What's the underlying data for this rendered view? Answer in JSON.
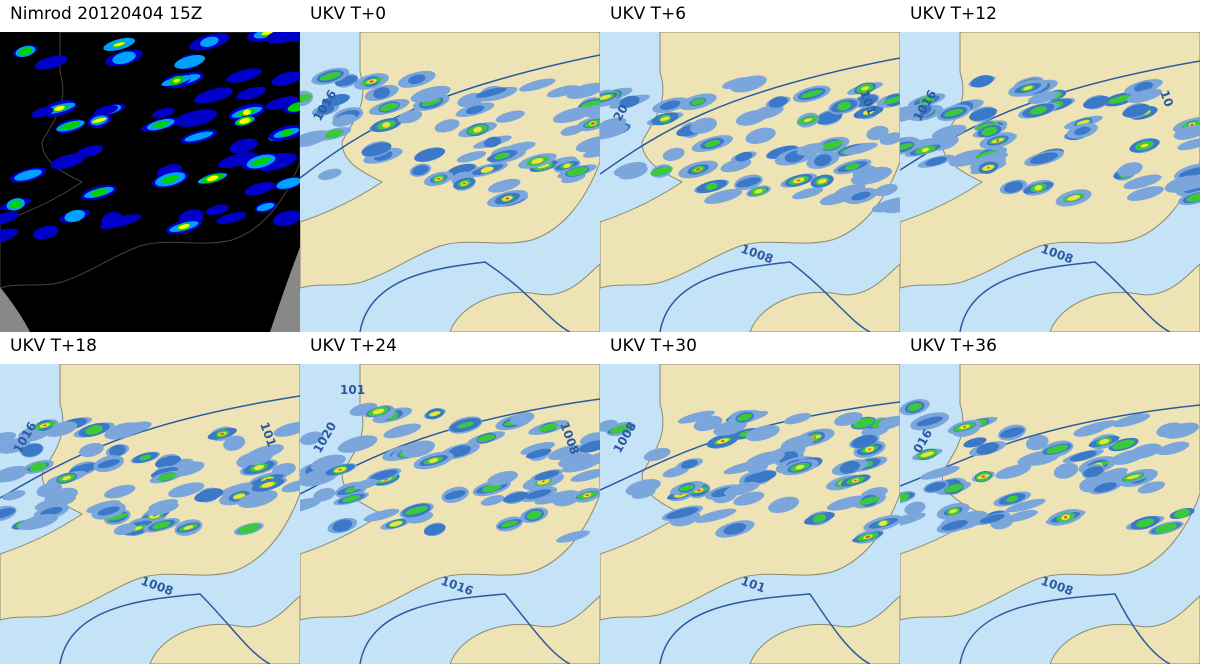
{
  "panels": [
    {
      "title": "Nimrod 20120404 15Z",
      "isobars": []
    },
    {
      "title": "UKV T+0",
      "isobars": [
        "1016"
      ]
    },
    {
      "title": "UKV T+6",
      "isobars": [
        "20",
        "1008",
        "101"
      ]
    },
    {
      "title": "UKV T+12",
      "isobars": [
        "1016",
        "1008",
        "10"
      ]
    },
    {
      "title": "UKV T+18",
      "isobars": [
        "1016",
        "1008",
        "101"
      ]
    },
    {
      "title": "UKV T+24",
      "isobars": [
        "1020",
        "1016",
        "1008",
        "101"
      ]
    },
    {
      "title": "UKV T+30",
      "isobars": [
        "1008",
        "101"
      ]
    },
    {
      "title": "UKV T+36",
      "isobars": [
        "016",
        "1008"
      ]
    }
  ]
}
